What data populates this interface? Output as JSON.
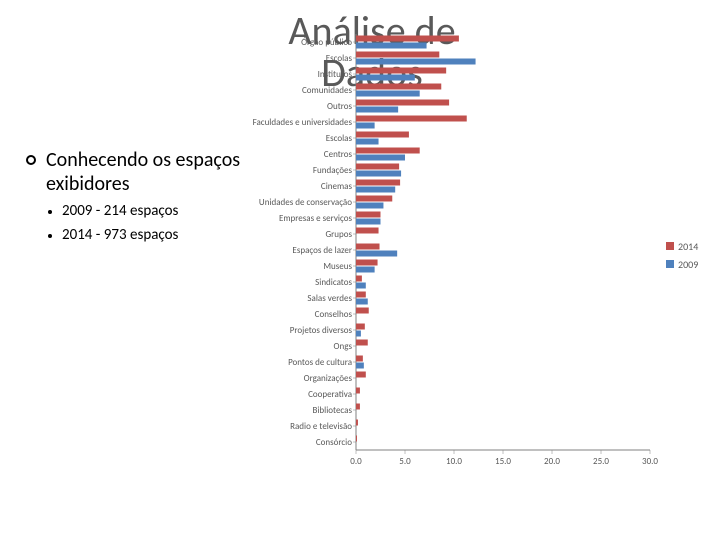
{
  "title": "Análise de Dados",
  "body": {
    "lvl0": "Conhecendo os espaços exibidores",
    "lvl1a": "2009 - 214 espaços",
    "lvl1b": "2014 - 973 espaços"
  },
  "legend": {
    "s2014": "2014",
    "s2009": "2009"
  },
  "chart": {
    "type": "bar-horizontal-grouped",
    "xlim": [
      0,
      30
    ],
    "xtick_step": 5,
    "x_ticks": [
      "0.0",
      "5.0",
      "10.0",
      "15.0",
      "20.0",
      "25.0",
      "30.0"
    ],
    "background_color": "#ffffff",
    "axis_color": "#808080",
    "series": [
      {
        "name": "2014",
        "color": "#c0504d"
      },
      {
        "name": "2009",
        "color": "#4f81bd"
      }
    ],
    "label_fontsize": 9,
    "bar_group_height": 16,
    "bar_thickness": 6,
    "categories": [
      {
        "label": "Órgão público",
        "v2014": 10.5,
        "v2009": 7.2
      },
      {
        "label": "Escolas",
        "v2014": 8.5,
        "v2009": 12.2
      },
      {
        "label": "Institutos",
        "v2014": 9.2,
        "v2009": 6.0
      },
      {
        "label": "Comunidades",
        "v2014": 8.7,
        "v2009": 6.5
      },
      {
        "label": "Outros",
        "v2014": 9.5,
        "v2009": 4.3
      },
      {
        "label": "Faculdades e universidades",
        "v2014": 11.3,
        "v2009": 1.9
      },
      {
        "label": "Escolas",
        "v2014": 5.4,
        "v2009": 2.3
      },
      {
        "label": "Centros",
        "v2014": 6.5,
        "v2009": 5.0
      },
      {
        "label": "Fundações",
        "v2014": 4.4,
        "v2009": 4.6
      },
      {
        "label": "Cinemas",
        "v2014": 4.5,
        "v2009": 4.0
      },
      {
        "label": "Unidades de conservação",
        "v2014": 3.7,
        "v2009": 2.8
      },
      {
        "label": "Empresas e serviços",
        "v2014": 2.5,
        "v2009": 2.5
      },
      {
        "label": "Grupos",
        "v2014": 2.3,
        "v2009": 0.0
      },
      {
        "label": "Espaços de lazer",
        "v2014": 2.4,
        "v2009": 4.2
      },
      {
        "label": "Museus",
        "v2014": 2.2,
        "v2009": 1.9
      },
      {
        "label": "Sindicatos",
        "v2014": 0.6,
        "v2009": 1.0
      },
      {
        "label": "Salas verdes",
        "v2014": 1.0,
        "v2009": 1.2
      },
      {
        "label": "Conselhos",
        "v2014": 1.3,
        "v2009": 0.0
      },
      {
        "label": "Projetos diversos",
        "v2014": 0.9,
        "v2009": 0.5
      },
      {
        "label": "Ongs",
        "v2014": 1.2,
        "v2009": 0.0
      },
      {
        "label": "Pontos de cultura",
        "v2014": 0.7,
        "v2009": 0.8
      },
      {
        "label": "Organizações",
        "v2014": 1.0,
        "v2009": 0.0
      },
      {
        "label": "Cooperativa",
        "v2014": 0.4,
        "v2009": 0.0
      },
      {
        "label": "Bibliotecas",
        "v2014": 0.4,
        "v2009": 0.0
      },
      {
        "label": "Radio e televisão",
        "v2014": 0.2,
        "v2009": 0.0
      },
      {
        "label": "Consórcio",
        "v2014": 0.1,
        "v2009": 0.0
      }
    ]
  }
}
